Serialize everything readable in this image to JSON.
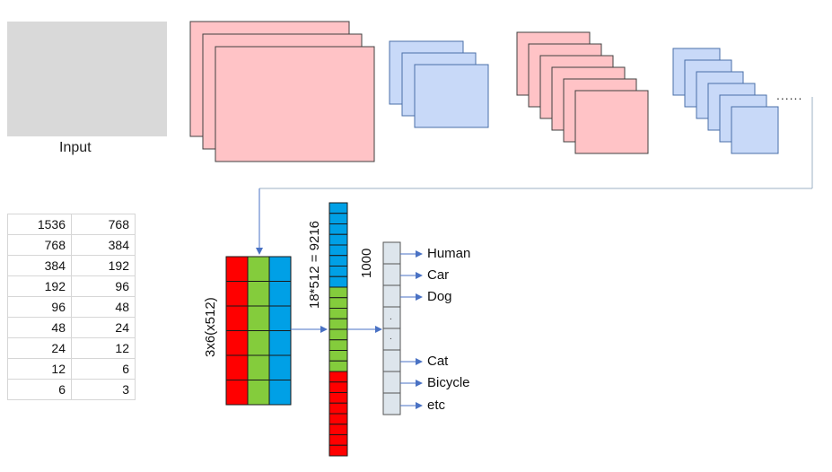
{
  "input_label": "Input",
  "ellipsis": "......",
  "table": {
    "rows": [
      [
        "1536",
        "768"
      ],
      [
        "768",
        "384"
      ],
      [
        "384",
        "192"
      ],
      [
        "192",
        "96"
      ],
      [
        "96",
        "48"
      ],
      [
        "48",
        "24"
      ],
      [
        "24",
        "12"
      ],
      [
        "12",
        "6"
      ],
      [
        "6",
        "3"
      ]
    ]
  },
  "feature_map_label": "3x6(x512)",
  "flatten_label": "18*512 = 9216",
  "fc_label": "1000",
  "fc_dot": ".",
  "classes": [
    "Human",
    "Car",
    "Dog",
    "Cat",
    "Bicycle",
    "etc"
  ],
  "colors": {
    "input_gray": "#d9d9d9",
    "conv_pink": "#ffc3c6",
    "conv_pink_border": "#404040",
    "pool_blue": "#c8d9f8",
    "red": "#ff0000",
    "green": "#84cc3c",
    "blue": "#00a0e6",
    "fc_cell": "#dde5ec",
    "arrow": "#4a72c4"
  }
}
